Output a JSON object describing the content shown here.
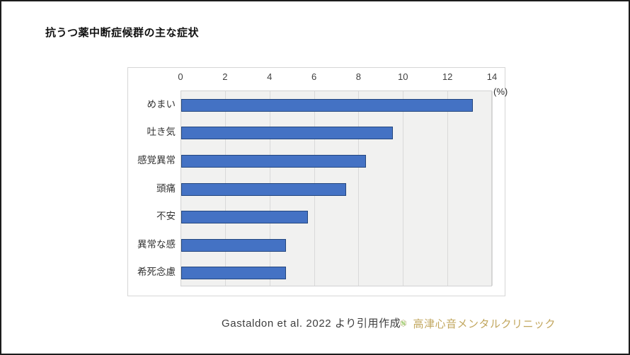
{
  "page": {
    "title": "抗うつ薬中断症候群の主な症状"
  },
  "chart_data": {
    "type": "bar",
    "orientation": "horizontal",
    "title": "抗うつ薬中断症候群の主な症状",
    "categories": [
      "めまい",
      "吐き気",
      "感覚異常",
      "頭痛",
      "不安",
      "異常な感",
      "希死念慮"
    ],
    "values": [
      13.1,
      9.5,
      8.3,
      7.4,
      5.7,
      4.7,
      4.7
    ],
    "xlabel": "(%)",
    "ylabel": "",
    "xlim": [
      0,
      14
    ],
    "xticks": [
      0,
      2,
      4,
      6,
      8,
      10,
      12,
      14
    ],
    "grid": true,
    "legend": false,
    "bar_fill": "#4472c4",
    "bar_border": "#24477f",
    "plot_bg": "#f1f1f0",
    "gridline_color": "#d9d9d9"
  },
  "footer": {
    "citation": "Gastaldon et al. 2022 より引用作成",
    "clinic_name": "高津心音メンタルクリニック",
    "clinic_text_color": "#c2a75f",
    "logo_hex_color": "#a39055",
    "logo_leaf_dark": "#9cc973",
    "logo_leaf_light": "#c9e3a6"
  }
}
